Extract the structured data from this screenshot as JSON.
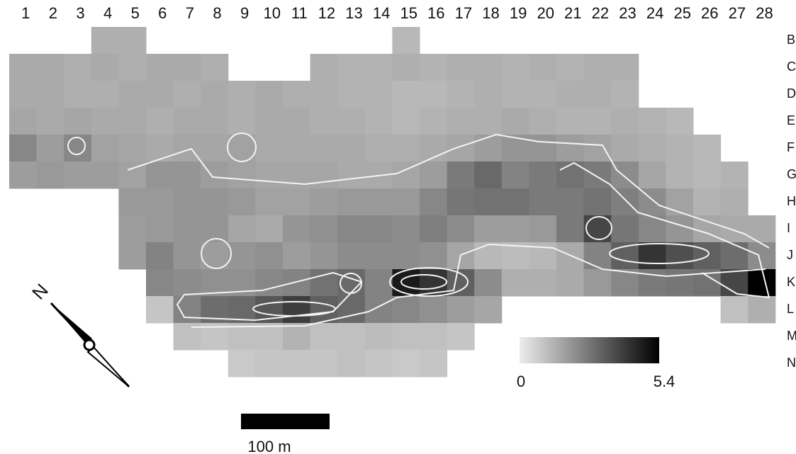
{
  "column_labels": [
    "1",
    "2",
    "3",
    "4",
    "5",
    "6",
    "7",
    "8",
    "9",
    "10",
    "11",
    "12",
    "13",
    "14",
    "15",
    "16",
    "17",
    "18",
    "19",
    "20",
    "21",
    "22",
    "23",
    "24",
    "25",
    "26",
    "27",
    "28"
  ],
  "row_labels": [
    "B",
    "C",
    "D",
    "E",
    "F",
    "G",
    "H",
    "I",
    "J",
    "K",
    "L",
    "M",
    "N"
  ],
  "cells": [
    [
      null,
      null,
      null,
      1.4,
      1.4,
      null,
      null,
      null,
      null,
      null,
      null,
      null,
      null,
      null,
      1.2,
      null,
      null,
      null,
      null,
      null,
      null,
      null,
      null,
      null,
      null,
      null,
      null,
      null
    ],
    [
      1.5,
      1.5,
      1.4,
      1.5,
      1.4,
      1.5,
      1.5,
      1.4,
      null,
      null,
      null,
      1.4,
      1.3,
      1.3,
      1.4,
      1.3,
      1.4,
      1.4,
      1.3,
      1.4,
      1.3,
      1.4,
      1.4,
      null,
      null,
      null,
      null,
      null
    ],
    [
      1.5,
      1.5,
      1.4,
      1.4,
      1.5,
      1.5,
      1.4,
      1.5,
      1.4,
      1.5,
      1.4,
      1.4,
      1.3,
      1.3,
      1.2,
      1.2,
      1.3,
      1.4,
      1.3,
      1.3,
      1.4,
      1.4,
      1.3,
      null,
      null,
      null,
      null,
      null
    ],
    [
      1.6,
      1.5,
      1.6,
      1.5,
      1.5,
      1.4,
      1.5,
      1.5,
      1.4,
      1.5,
      1.5,
      1.4,
      1.4,
      1.3,
      1.2,
      1.3,
      1.4,
      1.4,
      1.5,
      1.4,
      1.3,
      1.3,
      1.4,
      1.3,
      1.2,
      null,
      null,
      null
    ],
    [
      2.3,
      1.8,
      2.3,
      1.7,
      1.6,
      1.5,
      1.6,
      1.6,
      1.7,
      1.5,
      1.5,
      1.5,
      1.5,
      1.4,
      1.4,
      1.5,
      1.6,
      1.8,
      2.0,
      2.0,
      1.8,
      1.7,
      1.5,
      1.4,
      1.3,
      1.2,
      null,
      null
    ],
    [
      1.8,
      1.9,
      1.8,
      1.8,
      1.7,
      2.0,
      2.0,
      1.8,
      1.7,
      1.6,
      1.6,
      1.6,
      1.5,
      1.5,
      1.6,
      1.8,
      2.6,
      3.0,
      2.4,
      2.6,
      2.8,
      2.6,
      2.2,
      1.6,
      1.3,
      1.2,
      1.3,
      null
    ],
    [
      null,
      null,
      null,
      null,
      1.9,
      1.9,
      2.0,
      2.0,
      1.9,
      1.7,
      1.7,
      1.8,
      1.9,
      1.9,
      1.9,
      2.3,
      2.7,
      2.8,
      2.8,
      2.6,
      2.6,
      2.8,
      2.5,
      2.2,
      1.7,
      1.3,
      1.4,
      null
    ],
    [
      null,
      null,
      null,
      null,
      1.8,
      1.9,
      2.0,
      2.0,
      1.6,
      1.5,
      2.0,
      2.1,
      2.3,
      2.3,
      2.2,
      2.5,
      2.2,
      1.8,
      1.8,
      1.9,
      2.6,
      3.8,
      2.7,
      2.3,
      2.0,
      1.6,
      1.5,
      1.5
    ],
    [
      null,
      null,
      null,
      null,
      1.8,
      2.4,
      2.0,
      1.8,
      2.0,
      2.1,
      1.8,
      2.0,
      2.2,
      2.2,
      2.2,
      2.1,
      1.6,
      1.2,
      1.1,
      1.2,
      1.5,
      2.4,
      3.2,
      4.2,
      3.6,
      3.2,
      2.9,
      2.2
    ],
    [
      null,
      null,
      null,
      null,
      null,
      2.3,
      2.2,
      2.1,
      2.1,
      2.3,
      2.4,
      2.8,
      3.0,
      2.4,
      4.8,
      4.2,
      3.2,
      2.2,
      1.4,
      1.4,
      1.5,
      1.9,
      2.3,
      2.6,
      2.7,
      2.8,
      3.8,
      5.4
    ],
    [
      null,
      null,
      null,
      null,
      null,
      0.9,
      2.4,
      2.9,
      3.0,
      3.4,
      4.0,
      3.2,
      3.0,
      2.4,
      2.3,
      2.1,
      1.8,
      1.6,
      null,
      null,
      null,
      null,
      null,
      null,
      null,
      null,
      1.0,
      1.4
    ],
    [
      null,
      null,
      null,
      null,
      null,
      null,
      1.0,
      0.9,
      1.0,
      1.0,
      1.3,
      1.0,
      1.0,
      1.1,
      1.0,
      1.0,
      0.9,
      null,
      null,
      null,
      null,
      null,
      null,
      null,
      null,
      null,
      null,
      null
    ],
    [
      null,
      null,
      null,
      null,
      null,
      null,
      null,
      null,
      0.8,
      0.9,
      0.9,
      0.9,
      1.0,
      0.9,
      0.8,
      0.9,
      null,
      null,
      null,
      null,
      null,
      null,
      null,
      null,
      null,
      null,
      null,
      null
    ]
  ],
  "colorbar": {
    "min": 0,
    "max": 5.4
  },
  "scale_bar": "100 m",
  "north": "N"
}
